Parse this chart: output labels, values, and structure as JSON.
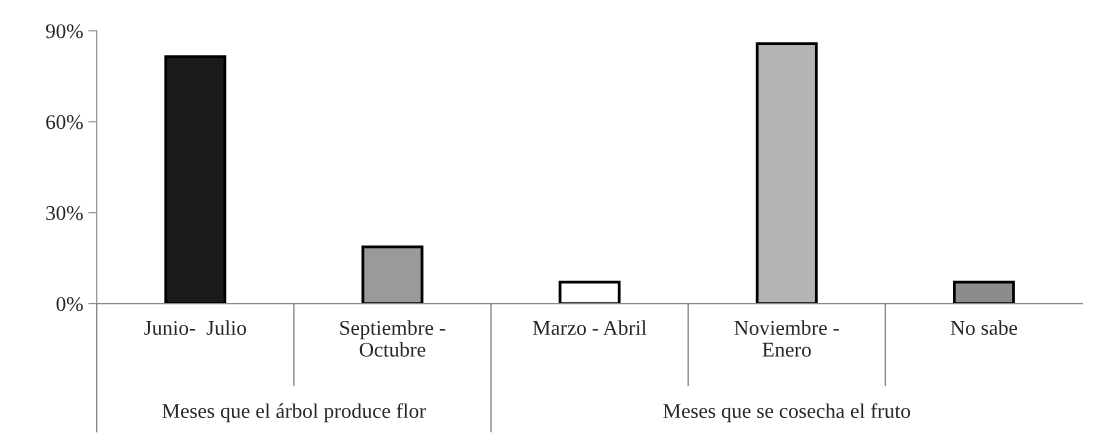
{
  "chart_data": {
    "type": "bar",
    "categories": [
      "Junio-  Julio",
      "Septiembre -\nOctubre",
      "Marzo - Abril",
      "Noviembre -\nEnero",
      "No sabe"
    ],
    "values": [
      81.5,
      18.7,
      7.1,
      85.8,
      7.1
    ],
    "colors": [
      "#1a1a1a",
      "#9a9a9a",
      "#ffffff",
      "#b4b4b4",
      "#8c8c8c"
    ],
    "ylim": [
      0,
      90
    ],
    "yticks": [
      {
        "value": 0,
        "label": "0%"
      },
      {
        "value": 30,
        "label": "30%"
      },
      {
        "value": 60,
        "label": "60%"
      },
      {
        "value": 90,
        "label": "90%"
      }
    ],
    "annotations": [
      "Meses que el árbol produce flor",
      "Meses que se cosecha el fruto"
    ],
    "grid": false
  }
}
